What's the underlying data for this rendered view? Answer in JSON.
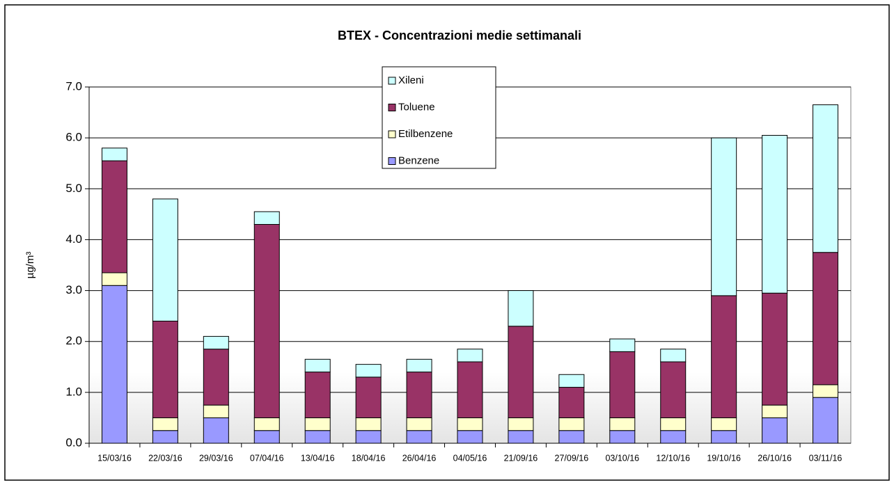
{
  "chart_data": {
    "type": "stacked_bar",
    "title": "BTEX - Concentrazioni medie settimanali",
    "y_label": "µg/m³",
    "categories": [
      "15/03/16",
      "22/03/16",
      "29/03/16",
      "07/04/16",
      "13/04/16",
      "18/04/16",
      "26/04/16",
      "04/05/16",
      "21/09/16",
      "27/09/16",
      "03/10/16",
      "12/10/16",
      "19/10/16",
      "26/10/16",
      "03/11/16"
    ],
    "series": [
      {
        "name": "Benzene",
        "color": "#9999ff",
        "values": [
          3.1,
          0.25,
          0.5,
          0.25,
          0.25,
          0.25,
          0.25,
          0.25,
          0.25,
          0.25,
          0.25,
          0.25,
          0.25,
          0.5,
          0.9
        ]
      },
      {
        "name": "Etilbenzene",
        "color": "#ffffcc",
        "values": [
          0.25,
          0.25,
          0.25,
          0.25,
          0.25,
          0.25,
          0.25,
          0.25,
          0.25,
          0.25,
          0.25,
          0.25,
          0.25,
          0.25,
          0.25
        ]
      },
      {
        "name": "Toluene",
        "color": "#993366",
        "values": [
          2.2,
          1.9,
          1.1,
          3.8,
          0.9,
          0.8,
          0.9,
          1.1,
          1.8,
          0.6,
          1.3,
          1.1,
          2.4,
          2.2,
          2.6
        ]
      },
      {
        "name": "Xileni",
        "color": "#ccffff",
        "values": [
          0.25,
          2.4,
          0.25,
          0.25,
          0.25,
          0.25,
          0.25,
          0.25,
          0.7,
          0.25,
          0.25,
          0.25,
          3.1,
          3.1,
          2.9
        ]
      }
    ],
    "ylim": [
      0,
      7
    ],
    "yticks": [
      {
        "value": 0,
        "label": "0.0"
      },
      {
        "value": 1,
        "label": "1.0"
      },
      {
        "value": 2,
        "label": "2.0"
      },
      {
        "value": 3,
        "label": "3.0"
      },
      {
        "value": 4,
        "label": "4.0"
      },
      {
        "value": 5,
        "label": "5.0"
      },
      {
        "value": 6,
        "label": "6.0"
      },
      {
        "value": 7,
        "label": "7.0"
      }
    ],
    "grid": true
  }
}
